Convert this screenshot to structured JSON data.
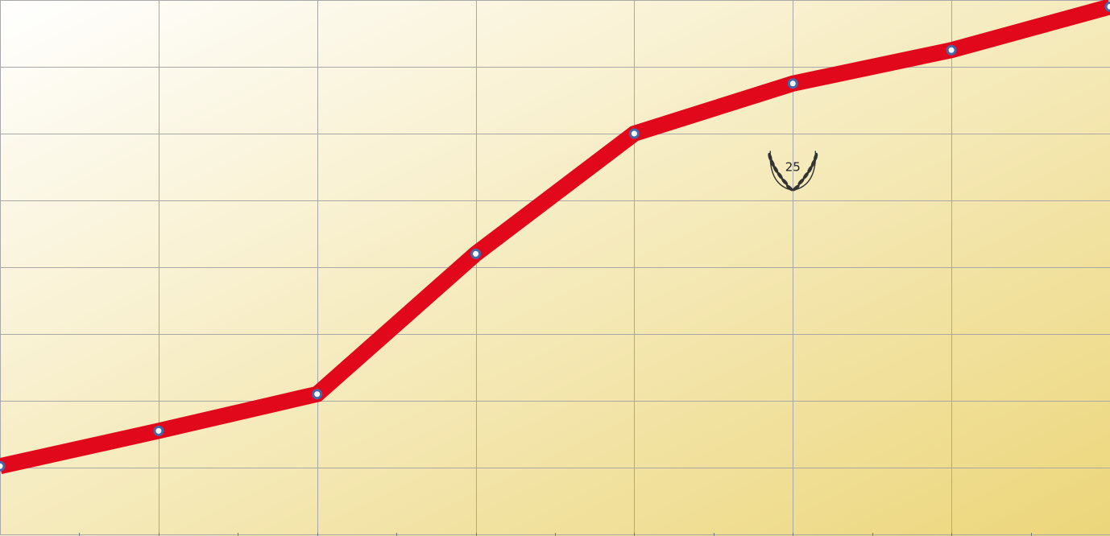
{
  "chart_data": {
    "type": "line",
    "x": [
      0,
      1,
      2,
      3,
      4,
      5,
      6,
      7
    ],
    "series": [
      {
        "values": [
          1.02,
          1.55,
          2.1,
          4.2,
          6.0,
          6.75,
          7.25,
          7.9
        ]
      }
    ],
    "xlim": [
      0,
      7
    ],
    "ylim": [
      0,
      8
    ],
    "x_grid_step": 1,
    "y_grid_step": 1,
    "x_minor_ticks": true,
    "grid": true,
    "legend": "none",
    "colors": {
      "line": "#e2081c",
      "marker_fill": "#ffffff",
      "marker_stroke": "#4468a8",
      "background_from": "#ffffff",
      "background_to": "#ecd67a",
      "grid": "#a8a8a8"
    },
    "annotation": {
      "text": "25",
      "x": 5,
      "y": 5.5,
      "icon": "laurel-wreath-icon"
    }
  }
}
